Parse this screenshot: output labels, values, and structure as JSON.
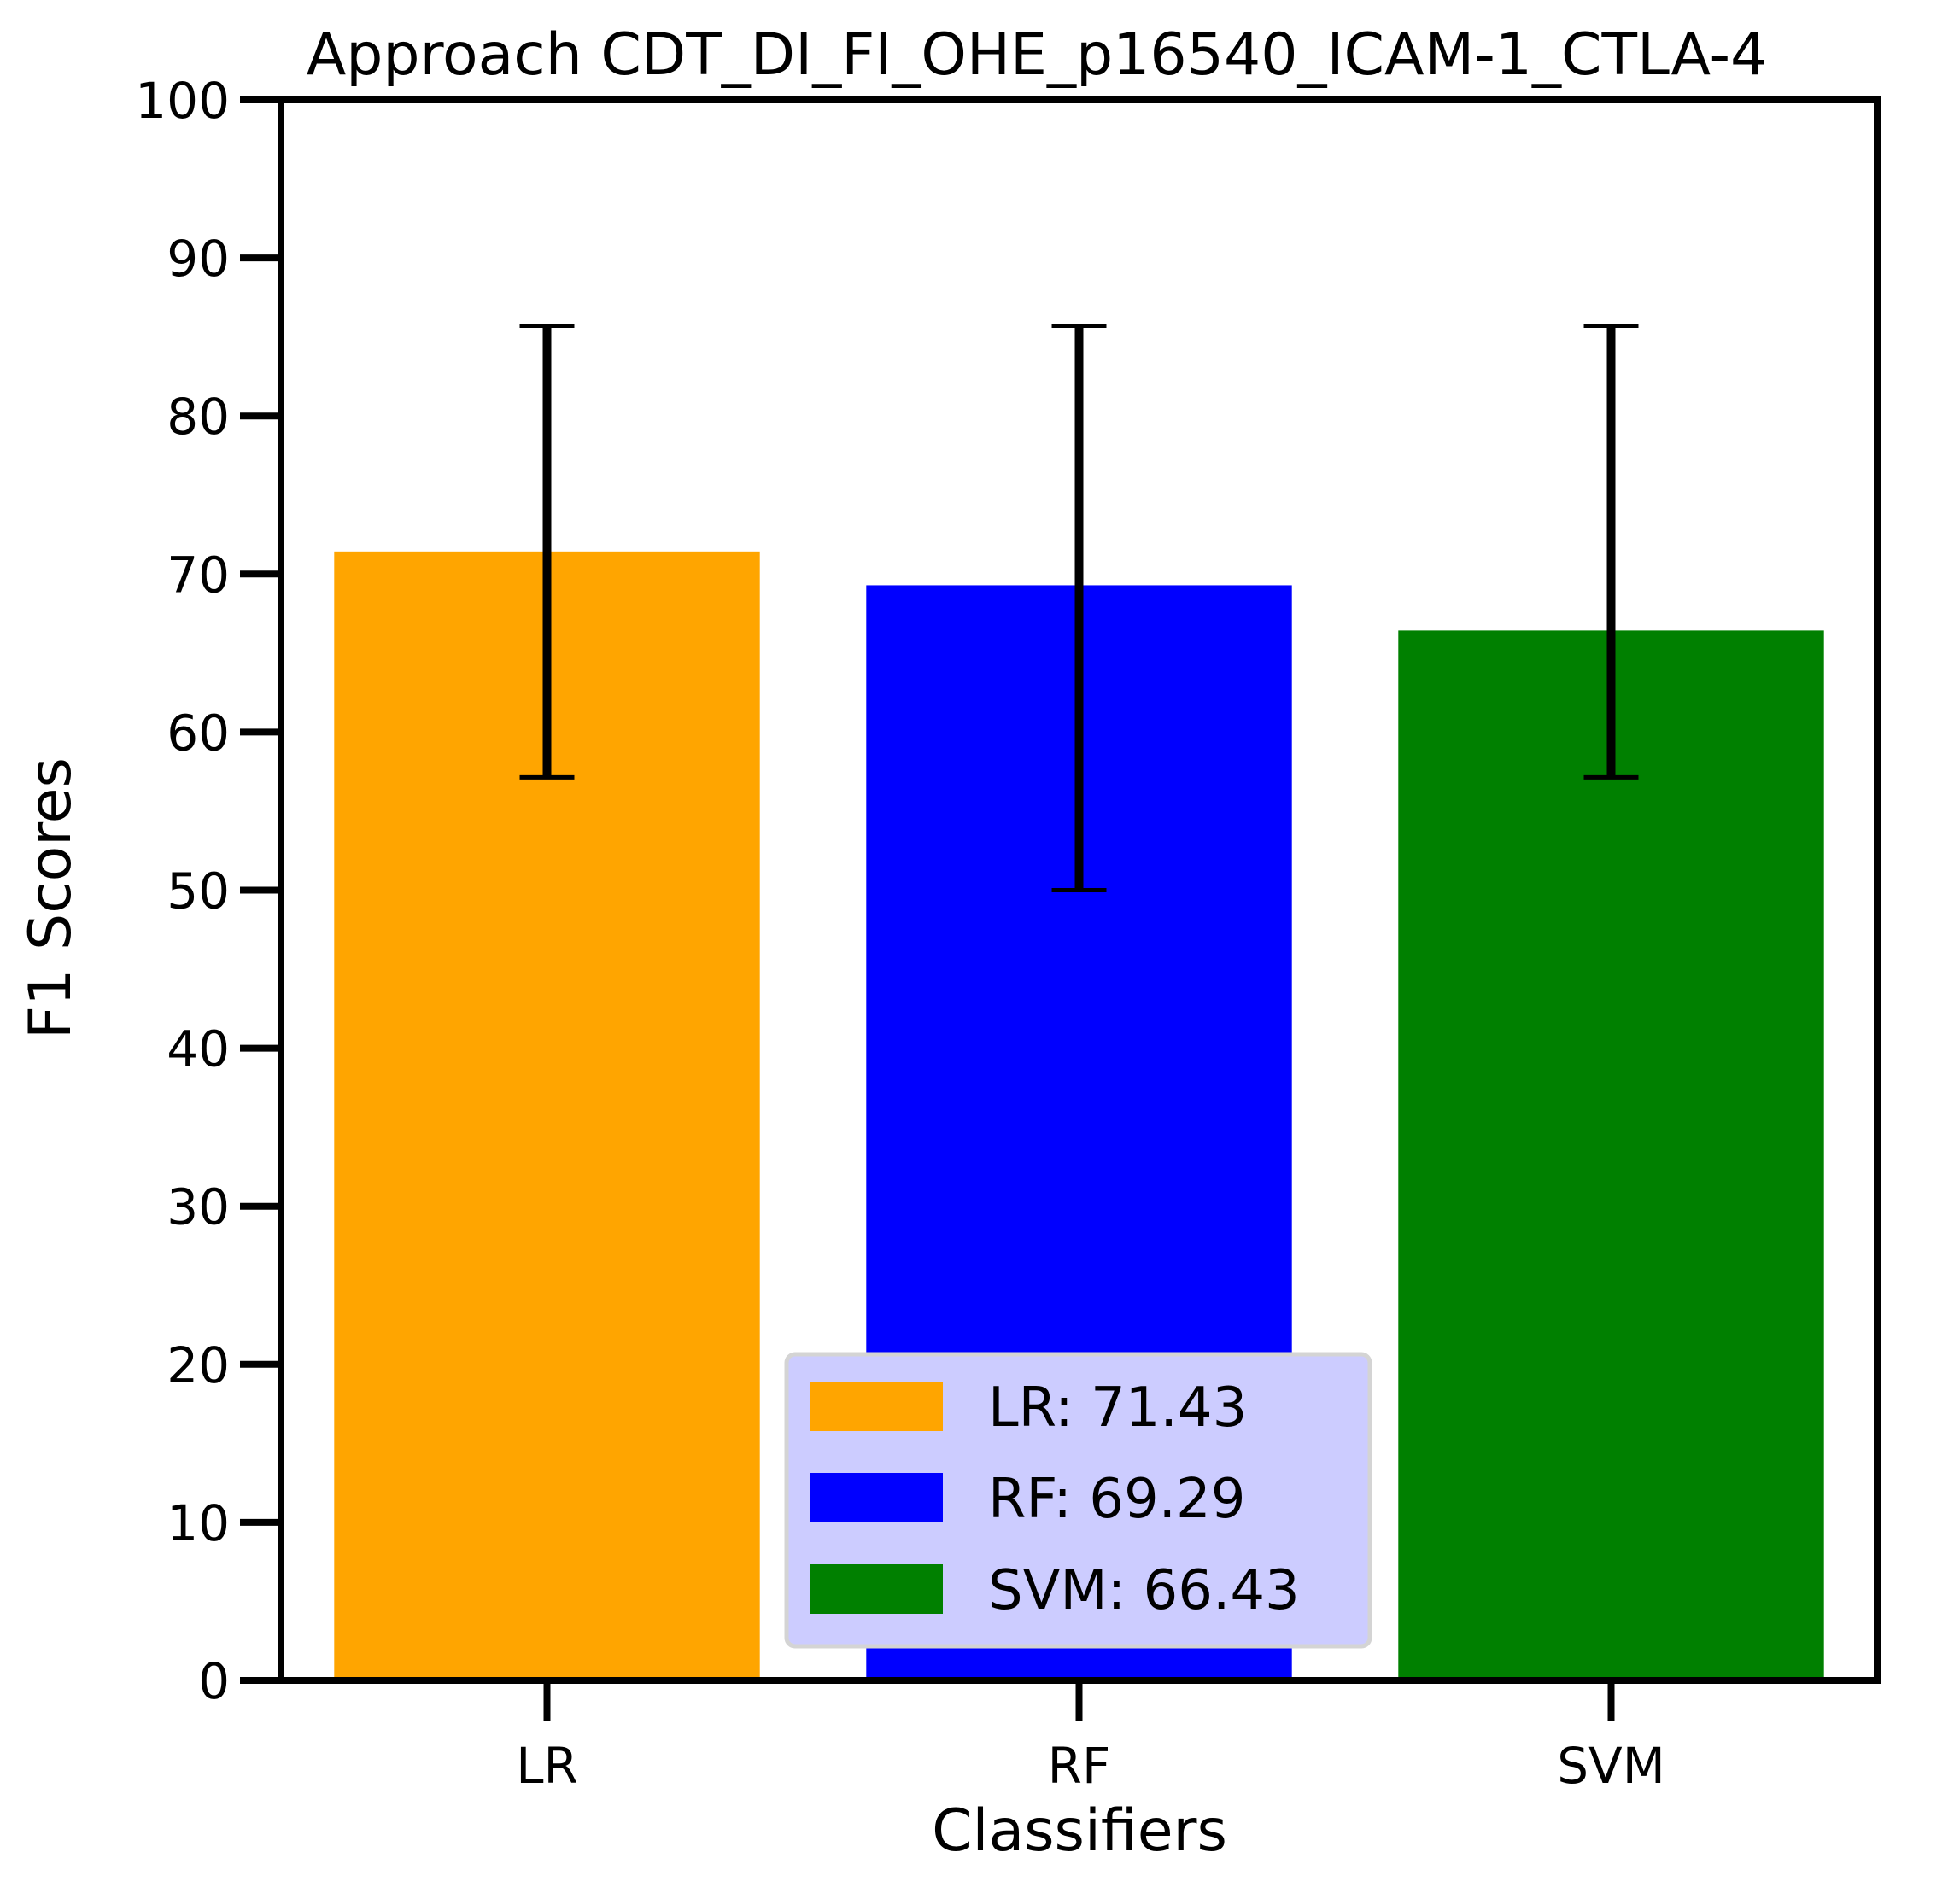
{
  "chart_data": {
    "type": "bar",
    "title": "Approach CDT_DI_FI_OHE_p16540_ICAM-1_CTLA-4",
    "xlabel": "Classifiers",
    "ylabel": "F1 Scores",
    "categories": [
      "LR",
      "RF",
      "SVM"
    ],
    "values": [
      71.43,
      69.29,
      66.43
    ],
    "error_low": [
      57.14,
      50.0,
      57.14
    ],
    "error_high": [
      85.71,
      85.71,
      85.71
    ],
    "colors": [
      "#ffa500",
      "#0000ff",
      "#008000"
    ],
    "ylim": [
      0,
      100
    ],
    "yticks": [
      0,
      10,
      20,
      30,
      40,
      50,
      60,
      70,
      80,
      90,
      100
    ],
    "grid": false,
    "legend": {
      "placement": "lower-center",
      "entries": [
        "LR: 71.43",
        "RF: 69.29",
        "SVM: 66.43"
      ],
      "background": "#ccccff"
    }
  }
}
